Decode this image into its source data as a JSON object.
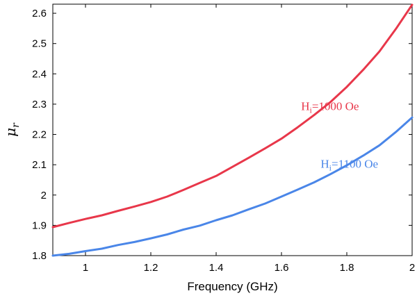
{
  "chart_data": {
    "type": "line",
    "title": "",
    "xlabel": "Frequency (GHz)",
    "ylabel": "μr",
    "xlim": [
      0.9,
      2.0
    ],
    "ylim": [
      1.8,
      2.63
    ],
    "xticks": [
      1,
      1.2,
      1.4,
      1.6,
      1.8,
      2
    ],
    "xtick_labels": [
      "1",
      "1.2",
      "1.4",
      "1.6",
      "1.8",
      "2"
    ],
    "yticks": [
      1.8,
      1.9,
      2.0,
      2.1,
      2.2,
      2.3,
      2.4,
      2.5,
      2.6
    ],
    "ytick_labels": [
      "1.8",
      "1.9",
      "2",
      "2.1",
      "2.2",
      "2.3",
      "2.4",
      "2.5",
      "2.6"
    ],
    "grid": false,
    "series": [
      {
        "name": "Hi=1000 Oe",
        "color": "#e8374a",
        "x": [
          0.9,
          0.95,
          1.0,
          1.05,
          1.1,
          1.15,
          1.2,
          1.25,
          1.3,
          1.35,
          1.4,
          1.45,
          1.5,
          1.55,
          1.6,
          1.65,
          1.7,
          1.75,
          1.8,
          1.85,
          1.9,
          1.95,
          2.0
        ],
        "values": [
          1.894,
          1.908,
          1.921,
          1.933,
          1.948,
          1.962,
          1.977,
          1.995,
          2.017,
          2.04,
          2.063,
          2.093,
          2.123,
          2.154,
          2.186,
          2.224,
          2.264,
          2.307,
          2.357,
          2.413,
          2.474,
          2.548,
          2.628
        ]
      },
      {
        "name": "Hi=1100 Oe",
        "color": "#4a86e8",
        "x": [
          0.9,
          0.95,
          1.0,
          1.05,
          1.1,
          1.15,
          1.2,
          1.25,
          1.3,
          1.35,
          1.4,
          1.45,
          1.5,
          1.55,
          1.6,
          1.65,
          1.7,
          1.75,
          1.8,
          1.85,
          1.9,
          1.95,
          2.0
        ],
        "values": [
          1.8,
          1.806,
          1.815,
          1.823,
          1.835,
          1.845,
          1.857,
          1.87,
          1.886,
          1.899,
          1.917,
          1.933,
          1.953,
          1.972,
          1.995,
          2.018,
          2.042,
          2.069,
          2.098,
          2.13,
          2.164,
          2.208,
          2.256
        ]
      }
    ],
    "annotations": [
      {
        "series": 0,
        "main": "H",
        "sub": "i",
        "rest": "=1000 Oe",
        "x": 1.66,
        "y": 2.28,
        "color": "#e8374a"
      },
      {
        "series": 1,
        "main": "H",
        "sub": "i",
        "rest": "=1100 Oe",
        "x": 1.72,
        "y": 2.09,
        "color": "#4a86e8"
      }
    ]
  }
}
